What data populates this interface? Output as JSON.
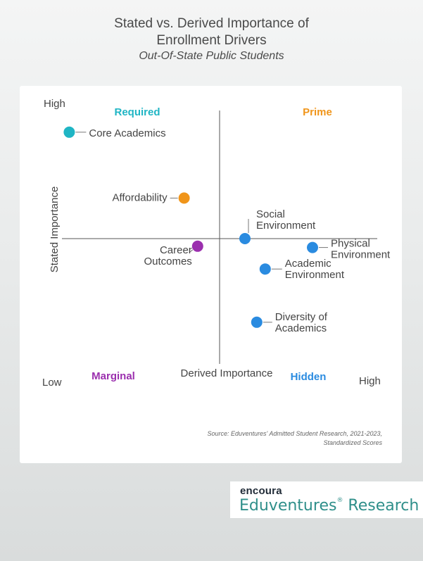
{
  "chart_data": {
    "type": "scatter",
    "title_line1": "Stated vs. Derived Importance of",
    "title_line2": "Enrollment Drivers",
    "subtitle": "Out-Of-State Public Students",
    "xlabel": "Derived Importance",
    "ylabel": "Stated Importance",
    "x_low_label": "Low",
    "x_high_label": "High",
    "y_low_label": "Low",
    "y_high_label": "High",
    "xlim": [
      -1,
      1
    ],
    "ylim": [
      -1,
      1
    ],
    "quadrants": {
      "top_left": {
        "label": "Required",
        "color": "#1fb5c4"
      },
      "top_right": {
        "label": "Prime",
        "color": "#f0951a"
      },
      "bottom_left": {
        "label": "Marginal",
        "color": "#9b2fae"
      },
      "bottom_right": {
        "label": "Hidden",
        "color": "#2a8be0"
      }
    },
    "points": [
      {
        "lines": [
          "Core Academics"
        ],
        "x": -0.89,
        "y": 0.84,
        "color": "#1fb5c4"
      },
      {
        "lines": [
          "Affordability"
        ],
        "x": -0.21,
        "y": 0.32,
        "color": "#f0951a"
      },
      {
        "lines": [
          "Social",
          "Environment"
        ],
        "x": 0.15,
        "y": 0.0,
        "color": "#2a8be0"
      },
      {
        "lines": [
          "Physical",
          "Environment"
        ],
        "x": 0.55,
        "y": -0.07,
        "color": "#2a8be0"
      },
      {
        "lines": [
          "Career",
          "Outcomes"
        ],
        "x": -0.13,
        "y": -0.06,
        "color": "#9b2fae"
      },
      {
        "lines": [
          "Academic",
          "Environment"
        ],
        "x": 0.27,
        "y": -0.24,
        "color": "#2a8be0"
      },
      {
        "lines": [
          "Diversity of",
          "Academics"
        ],
        "x": 0.22,
        "y": -0.66,
        "color": "#2a8be0"
      }
    ]
  },
  "source": {
    "line1": "Source: Eduventures' Admitted Student Research, 2021-2023,",
    "line2": "Standardized Scores"
  },
  "logo": {
    "brand": "encoura",
    "name": "Eduventures",
    "mark": "®",
    "suffix": " Research"
  }
}
